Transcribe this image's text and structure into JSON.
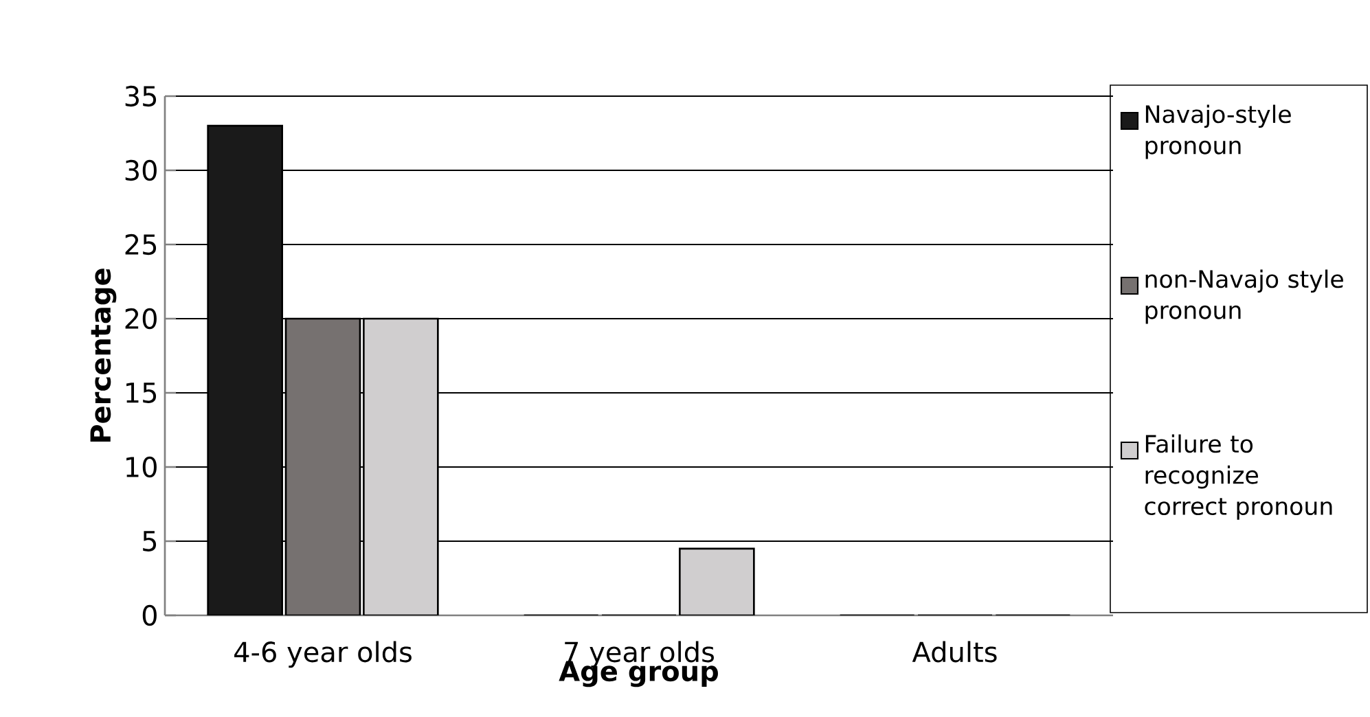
{
  "chart_data": {
    "type": "bar",
    "xlabel": "Age group",
    "ylabel": "Percentage",
    "categories": [
      "4-6 year olds",
      "7 year olds",
      "Adults"
    ],
    "series": [
      {
        "name": "Navajo-style pronoun",
        "color": "#1a1a1a",
        "values": [
          33,
          0,
          0
        ]
      },
      {
        "name": "non-Navajo style pronoun",
        "color": "#767170",
        "values": [
          20,
          0,
          0
        ]
      },
      {
        "name": "Failure to recognize correct pronoun",
        "color": "#d0cecf",
        "values": [
          20,
          4.5,
          0
        ]
      }
    ],
    "ylim": [
      0,
      35
    ],
    "yticks": [
      0,
      5,
      10,
      15,
      20,
      25,
      30,
      35
    ],
    "grid": "y",
    "legend": "right"
  }
}
